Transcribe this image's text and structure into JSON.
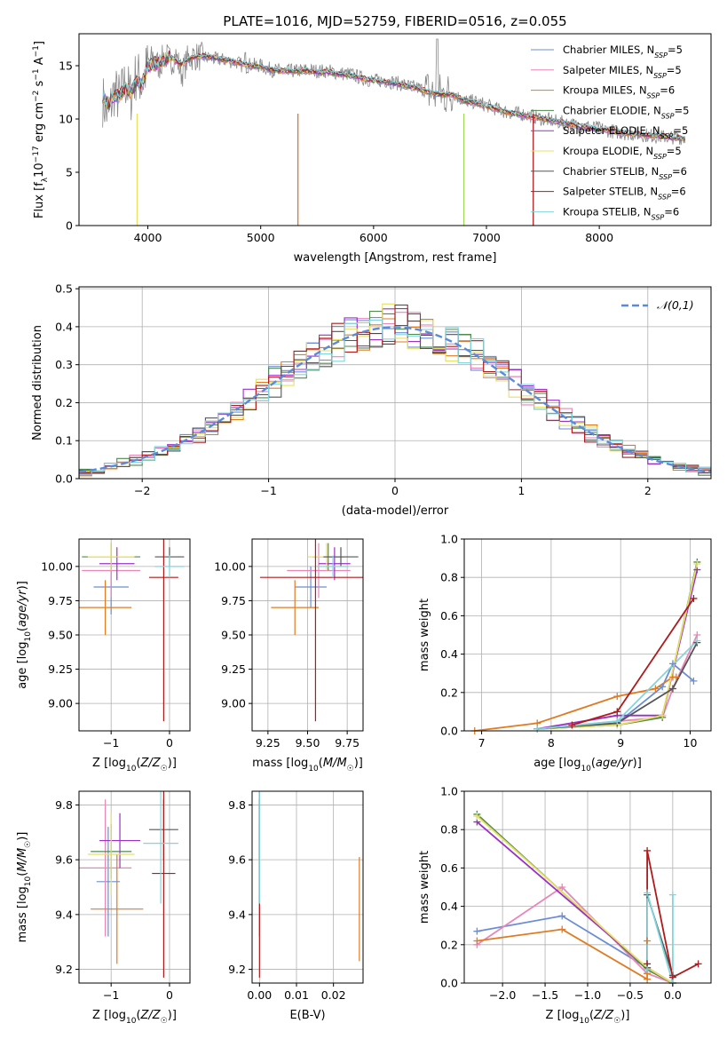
{
  "figure_title": "PLATE=1016, MJD=52759, FIBERID=0516, z=0.055",
  "models": [
    {
      "name": "Chabrier MILES",
      "nssp": "5",
      "color": "#6b8dd6"
    },
    {
      "name": "Salpeter MILES",
      "nssp": "5",
      "color": "#e986b8"
    },
    {
      "name": "Kroupa MILES",
      "nssp": "6",
      "color": "#e07b22"
    },
    {
      "name": "Chabrier ELODIE",
      "nssp": "5",
      "color": "#4f8a4f"
    },
    {
      "name": "Salpeter ELODIE",
      "nssp": "5",
      "color": "#9b30c8"
    },
    {
      "name": "Kroupa ELODIE",
      "nssp": "5",
      "color": "#e8e060"
    },
    {
      "name": "Chabrier STELIB",
      "nssp": "6",
      "color": "#555555"
    },
    {
      "name": "Salpeter STELIB",
      "nssp": "6",
      "color": "#b01a1a"
    },
    {
      "name": "Kroupa STELIB",
      "nssp": "6",
      "color": "#7fd6dc"
    }
  ],
  "chart_data": [
    {
      "id": "spectrum",
      "type": "line",
      "title": "PLATE=1016, MJD=52759, FIBERID=0516, z=0.055",
      "xlabel": "wavelength [Angstrom, rest frame]",
      "ylabel": "Flux [f_λ 10^-17 erg cm^-2 s^-1 A^-1]",
      "xlim": [
        3390,
        8990
      ],
      "ylim": [
        0,
        18
      ],
      "xticks": [
        4000,
        5000,
        6000,
        7000,
        8000
      ],
      "yticks": [
        0,
        5,
        10,
        15
      ],
      "observed_color": "#888888",
      "observed": [
        [
          3600,
          11.8
        ],
        [
          3650,
          10.2
        ],
        [
          3700,
          12.6
        ],
        [
          3750,
          11.9
        ],
        [
          3800,
          13.4
        ],
        [
          3850,
          12.1
        ],
        [
          3900,
          14.3
        ],
        [
          3950,
          13.2
        ],
        [
          4000,
          15.2
        ],
        [
          4050,
          15.8
        ],
        [
          4100,
          14.9
        ],
        [
          4150,
          16.1
        ],
        [
          4200,
          15.4
        ],
        [
          4250,
          15.9
        ],
        [
          4300,
          14.2
        ],
        [
          4350,
          15.6
        ],
        [
          4400,
          15.9
        ],
        [
          4500,
          15.8
        ],
        [
          4600,
          15.6
        ],
        [
          4700,
          15.5
        ],
        [
          4800,
          15.3
        ],
        [
          4861,
          14.8
        ],
        [
          4900,
          15.1
        ],
        [
          5000,
          15.0
        ],
        [
          5100,
          14.6
        ],
        [
          5200,
          14.5
        ],
        [
          5300,
          14.5
        ],
        [
          5400,
          14.6
        ],
        [
          5500,
          14.5
        ],
        [
          5600,
          14.5
        ],
        [
          5700,
          14.3
        ],
        [
          5800,
          14.2
        ],
        [
          5900,
          13.8
        ],
        [
          6000,
          13.6
        ],
        [
          6100,
          13.6
        ],
        [
          6200,
          13.4
        ],
        [
          6300,
          13.1
        ],
        [
          6400,
          12.9
        ],
        [
          6500,
          12.5
        ],
        [
          6563,
          12.2
        ],
        [
          6600,
          12.3
        ],
        [
          6700,
          12.4
        ],
        [
          6800,
          11.7
        ],
        [
          6900,
          11.6
        ],
        [
          7000,
          11.3
        ],
        [
          7100,
          10.9
        ],
        [
          7200,
          10.6
        ],
        [
          7300,
          10.5
        ],
        [
          7400,
          10.3
        ],
        [
          7500,
          10.0
        ],
        [
          7600,
          9.8
        ],
        [
          7700,
          9.6
        ],
        [
          7800,
          9.4
        ],
        [
          7900,
          9.3
        ],
        [
          8000,
          9.1
        ],
        [
          8100,
          8.9
        ],
        [
          8200,
          8.7
        ],
        [
          8300,
          8.6
        ],
        [
          8400,
          8.5
        ],
        [
          8500,
          8.4
        ],
        [
          8600,
          8.3
        ],
        [
          8700,
          8.3
        ],
        [
          8760,
          8.2
        ]
      ],
      "model": [
        [
          3600,
          12.2
        ],
        [
          3650,
          11.3
        ],
        [
          3700,
          12.2
        ],
        [
          3750,
          12.1
        ],
        [
          3800,
          12.9
        ],
        [
          3850,
          12.5
        ],
        [
          3900,
          13.5
        ],
        [
          3950,
          13.3
        ],
        [
          4000,
          14.9
        ],
        [
          4100,
          15.3
        ],
        [
          4200,
          15.8
        ],
        [
          4300,
          15.1
        ],
        [
          4400,
          15.8
        ],
        [
          4500,
          15.9
        ],
        [
          4600,
          15.7
        ],
        [
          4700,
          15.5
        ],
        [
          4800,
          15.3
        ],
        [
          4900,
          15.0
        ],
        [
          5000,
          14.9
        ],
        [
          5100,
          14.6
        ],
        [
          5200,
          14.5
        ],
        [
          5300,
          14.5
        ],
        [
          5400,
          14.5
        ],
        [
          5500,
          14.4
        ],
        [
          5600,
          14.4
        ],
        [
          5700,
          14.2
        ],
        [
          5800,
          14.1
        ],
        [
          5900,
          13.8
        ],
        [
          6000,
          13.6
        ],
        [
          6100,
          13.5
        ],
        [
          6200,
          13.3
        ],
        [
          6300,
          13.1
        ],
        [
          6400,
          12.8
        ],
        [
          6500,
          12.5
        ],
        [
          6600,
          12.3
        ],
        [
          6700,
          12.3
        ],
        [
          6800,
          11.7
        ],
        [
          6900,
          11.5
        ],
        [
          7000,
          11.2
        ],
        [
          7100,
          10.9
        ],
        [
          7200,
          10.6
        ],
        [
          7300,
          10.4
        ],
        [
          7400,
          10.2
        ],
        [
          7500,
          10.0
        ],
        [
          7600,
          9.8
        ],
        [
          7700,
          9.6
        ],
        [
          7800,
          9.4
        ],
        [
          7900,
          9.2
        ],
        [
          8000,
          9.0
        ],
        [
          8100,
          8.9
        ],
        [
          8200,
          8.7
        ],
        [
          8300,
          8.6
        ],
        [
          8400,
          8.5
        ],
        [
          8500,
          8.4
        ],
        [
          8600,
          8.3
        ],
        [
          8700,
          8.2
        ],
        [
          8760,
          8.2
        ]
      ],
      "legend": "top-right"
    },
    {
      "id": "residuals",
      "type": "histogram",
      "xlabel": "(data-model)/error",
      "ylabel": "Normed distribution",
      "xlim": [
        -2.5,
        2.5
      ],
      "ylim": [
        0,
        0.505
      ],
      "xticks": [
        -2,
        -1,
        0,
        1,
        2
      ],
      "yticks": [
        0.0,
        0.1,
        0.2,
        0.3,
        0.4,
        0.5
      ],
      "bin_width": 0.1,
      "bin_start": -2.5,
      "normal_label": "𝒩(0,1)",
      "normal_color": "#5b8bd8",
      "grid": true,
      "legend": "top-right"
    },
    {
      "id": "age-vs-Z",
      "type": "errorbar",
      "xlabel": "Z [log10(Z/Z☉)]",
      "ylabel": "age [log10(age/yr)]",
      "xlim": [
        -1.55,
        0.35
      ],
      "ylim": [
        8.8,
        10.2
      ],
      "xticks": [
        -1,
        0
      ],
      "yticks": [
        9.0,
        9.25,
        9.5,
        9.75,
        10.0
      ],
      "grid": true,
      "points": [
        {
          "x": -1.0,
          "y": 9.85,
          "xerr": 0.3,
          "yerr": 0.2,
          "model": 0
        },
        {
          "x": -1.0,
          "y": 9.97,
          "xerr": 0.5,
          "yerr": 0.2,
          "model": 1
        },
        {
          "x": -1.1,
          "y": 9.7,
          "xerr": 0.45,
          "yerr": 0.2,
          "model": 2
        },
        {
          "x": -1.0,
          "y": 10.07,
          "xerr": 0.5,
          "yerr": 0.1,
          "model": 3
        },
        {
          "x": -0.9,
          "y": 10.02,
          "xerr": 0.3,
          "yerr": 0.12,
          "model": 4
        },
        {
          "x": -1.0,
          "y": 10.07,
          "xerr": 0.4,
          "yerr": 0.1,
          "model": 5
        },
        {
          "x": 0.0,
          "y": 10.07,
          "xerr": 0.25,
          "yerr": 0.07,
          "model": 6
        },
        {
          "x": -0.1,
          "y": 9.92,
          "xerr": 0.25,
          "yerr": 1.05,
          "model": 7
        },
        {
          "x": 0.0,
          "y": 10.0,
          "xerr": 0.25,
          "yerr": 0.08,
          "model": 8
        }
      ]
    },
    {
      "id": "age-vs-mass",
      "type": "errorbar",
      "xlabel": "mass [log10(M/M☉)]",
      "ylabel": "",
      "xlim": [
        9.15,
        9.85
      ],
      "ylim": [
        8.8,
        10.2
      ],
      "xticks": [
        9.25,
        9.5,
        9.75
      ],
      "yticks": [
        9.0,
        9.25,
        9.5,
        9.75,
        10.0
      ],
      "grid": true,
      "points": [
        {
          "x": 9.52,
          "y": 9.85,
          "xerr": 0.1,
          "yerr": 0.15,
          "model": 0
        },
        {
          "x": 9.57,
          "y": 9.97,
          "xerr": 0.2,
          "yerr": 0.2,
          "model": 1
        },
        {
          "x": 9.42,
          "y": 9.7,
          "xerr": 0.15,
          "yerr": 0.2,
          "model": 2
        },
        {
          "x": 9.63,
          "y": 10.07,
          "xerr": 0.1,
          "yerr": 0.1,
          "model": 3
        },
        {
          "x": 9.67,
          "y": 10.02,
          "xerr": 0.1,
          "yerr": 0.12,
          "model": 4
        },
        {
          "x": 9.62,
          "y": 10.07,
          "xerr": 0.12,
          "yerr": 0.1,
          "model": 5
        },
        {
          "x": 9.71,
          "y": 10.07,
          "xerr": 0.11,
          "yerr": 0.07,
          "model": 6
        },
        {
          "x": 9.55,
          "y": 9.92,
          "xerr": 0.35,
          "yerr": 1.05,
          "model": 7
        },
        {
          "x": 9.66,
          "y": 10.0,
          "xerr": 0.1,
          "yerr": 0.08,
          "model": 8
        }
      ]
    },
    {
      "id": "weight-vs-age",
      "type": "line",
      "xlabel": "age [log10(age/yr)]",
      "ylabel": "mass weight",
      "xlim": [
        6.75,
        10.3
      ],
      "ylim": [
        0,
        1
      ],
      "xticks": [
        7,
        8,
        9,
        10
      ],
      "yticks": [
        0.0,
        0.2,
        0.4,
        0.6,
        0.8,
        1.0
      ],
      "grid": true,
      "series": [
        {
          "model": 0,
          "x": [
            7.8,
            8.95,
            9.6,
            9.75,
            10.05
          ],
          "y": [
            0.01,
            0.04,
            0.23,
            0.35,
            0.26
          ]
        },
        {
          "model": 1,
          "x": [
            7.8,
            8.95,
            9.6,
            9.75,
            10.1
          ],
          "y": [
            0.01,
            0.05,
            0.07,
            0.22,
            0.5
          ]
        },
        {
          "model": 2,
          "x": [
            6.9,
            7.8,
            8.95,
            9.5,
            9.75,
            9.8
          ],
          "y": [
            0.0,
            0.04,
            0.18,
            0.22,
            0.28,
            0.28
          ]
        },
        {
          "model": 3,
          "x": [
            7.8,
            8.95,
            9.6,
            10.1
          ],
          "y": [
            0.01,
            0.03,
            0.07,
            0.88
          ]
        },
        {
          "model": 4,
          "x": [
            7.8,
            8.95,
            9.6,
            10.1
          ],
          "y": [
            0.01,
            0.08,
            0.08,
            0.84
          ]
        },
        {
          "model": 5,
          "x": [
            7.8,
            8.95,
            9.6,
            10.1
          ],
          "y": [
            0.01,
            0.03,
            0.08,
            0.87
          ]
        },
        {
          "model": 6,
          "x": [
            7.8,
            8.95,
            9.75,
            10.1
          ],
          "y": [
            0.01,
            0.04,
            0.22,
            0.46
          ]
        },
        {
          "model": 7,
          "x": [
            8.3,
            8.95,
            10.05
          ],
          "y": [
            0.03,
            0.1,
            0.69
          ]
        },
        {
          "model": 8,
          "x": [
            7.8,
            8.95,
            10.1
          ],
          "y": [
            0.01,
            0.05,
            0.47
          ]
        }
      ]
    },
    {
      "id": "mass-vs-Z",
      "type": "errorbar",
      "xlabel": "Z [log10(Z/Z☉)]",
      "ylabel": "mass [log10(M/M☉)]",
      "xlim": [
        -1.55,
        0.35
      ],
      "ylim": [
        9.15,
        9.85
      ],
      "xticks": [
        -1,
        0
      ],
      "yticks": [
        9.2,
        9.4,
        9.6,
        9.8
      ],
      "grid": true,
      "points": [
        {
          "x": -1.05,
          "y": 9.52,
          "xerr": 0.2,
          "yerr": 0.2,
          "model": 0
        },
        {
          "x": -1.1,
          "y": 9.57,
          "xerr": 0.45,
          "yerr": 0.25,
          "model": 1
        },
        {
          "x": -0.9,
          "y": 9.42,
          "xerr": 0.45,
          "yerr": 0.2,
          "model": 2
        },
        {
          "x": -1.0,
          "y": 9.63,
          "xerr": 0.35,
          "yerr": 0.1,
          "model": 3
        },
        {
          "x": -0.85,
          "y": 9.67,
          "xerr": 0.35,
          "yerr": 0.1,
          "model": 4
        },
        {
          "x": -1.0,
          "y": 9.62,
          "xerr": 0.4,
          "yerr": 0.15,
          "model": 5
        },
        {
          "x": -0.1,
          "y": 9.71,
          "xerr": 0.25,
          "yerr": 0.11,
          "model": 6
        },
        {
          "x": -0.1,
          "y": 9.55,
          "xerr": 0.2,
          "yerr": 0.38,
          "model": 7
        },
        {
          "x": -0.15,
          "y": 9.66,
          "xerr": 0.3,
          "yerr": 0.22,
          "model": 8
        }
      ]
    },
    {
      "id": "mass-vs-EBV",
      "type": "errorbar",
      "xlabel": "E(B-V)",
      "ylabel": "",
      "xlim": [
        -0.002,
        0.028
      ],
      "ylim": [
        9.15,
        9.85
      ],
      "xticks": [
        0.0,
        0.01,
        0.02
      ],
      "yticks": [
        9.2,
        9.4,
        9.6,
        9.8
      ],
      "grid": true,
      "points": [
        {
          "x": 0.0,
          "y": 9.52,
          "xerr": 0,
          "yerr": 0.2,
          "model": 0
        },
        {
          "x": 0.0,
          "y": 9.57,
          "xerr": 0,
          "yerr": 0.25,
          "model": 1
        },
        {
          "x": 0.027,
          "y": 9.42,
          "xerr": 0,
          "yerr": 0.19,
          "model": 2
        },
        {
          "x": 0.0,
          "y": 9.63,
          "xerr": 0,
          "yerr": 0.1,
          "model": 3
        },
        {
          "x": 0.0,
          "y": 9.67,
          "xerr": 0,
          "yerr": 0.1,
          "model": 4
        },
        {
          "x": 0.0,
          "y": 9.62,
          "xerr": 0,
          "yerr": 0.15,
          "model": 5
        },
        {
          "x": 0.0,
          "y": 9.71,
          "xerr": 0,
          "yerr": 0.11,
          "model": 6
        },
        {
          "x": 0.0,
          "y": 9.55,
          "xerr": 0,
          "yerr": 0.38,
          "model": 7
        },
        {
          "x": 0.0,
          "y": 9.66,
          "xerr": 0,
          "yerr": 0.22,
          "model": 8
        }
      ]
    },
    {
      "id": "weight-vs-Z",
      "type": "line",
      "xlabel": "Z [log10(Z/Z☉)]",
      "ylabel": "mass weight",
      "xlim": [
        -2.45,
        0.45
      ],
      "ylim": [
        0,
        1
      ],
      "xticks": [
        -2.0,
        -1.5,
        -1.0,
        -0.5,
        0.0
      ],
      "yticks": [
        0.0,
        0.2,
        0.4,
        0.6,
        0.8,
        1.0
      ],
      "grid": true,
      "series": [
        {
          "model": 0,
          "x": [
            -2.3,
            -1.3,
            -0.3,
            0.0
          ],
          "y": [
            0.27,
            0.35,
            0.08,
            0.0
          ]
        },
        {
          "model": 1,
          "x": [
            -2.3,
            -1.3,
            -0.3,
            0.0
          ],
          "y": [
            0.2,
            0.5,
            0.05,
            0.0
          ]
        },
        {
          "model": 2,
          "x": [
            -2.3,
            -1.3,
            -0.3,
            -0.3,
            -0.3
          ],
          "y": [
            0.22,
            0.28,
            0.02,
            0.05,
            0.22
          ]
        },
        {
          "model": 3,
          "x": [
            -2.3,
            -0.3,
            0.0
          ],
          "y": [
            0.88,
            0.07,
            0.0
          ]
        },
        {
          "model": 4,
          "x": [
            -2.3,
            -0.3,
            0.0
          ],
          "y": [
            0.84,
            0.08,
            0.0
          ]
        },
        {
          "model": 5,
          "x": [
            -2.3,
            -0.3,
            0.0
          ],
          "y": [
            0.87,
            0.08,
            0.0
          ]
        },
        {
          "model": 6,
          "x": [
            -0.3,
            -0.3,
            0.0
          ],
          "y": [
            0.08,
            0.46,
            0.04
          ]
        },
        {
          "model": 7,
          "x": [
            -0.3,
            -0.3,
            0.0,
            0.3
          ],
          "y": [
            0.1,
            0.69,
            0.03,
            0.1
          ]
        },
        {
          "model": 8,
          "x": [
            -0.3,
            -0.3,
            0.0,
            0.0
          ],
          "y": [
            0.07,
            0.47,
            0.0,
            0.46
          ]
        }
      ]
    }
  ]
}
